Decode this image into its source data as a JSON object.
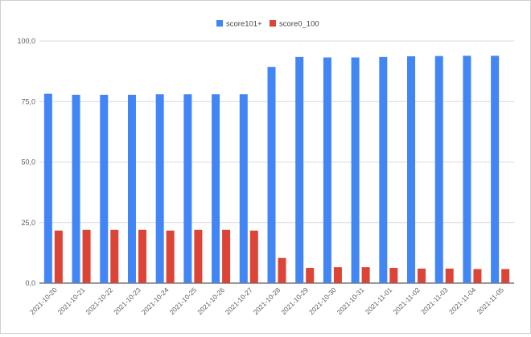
{
  "chart_data": {
    "type": "bar",
    "title": "",
    "xlabel": "",
    "ylabel": "",
    "ylim": [
      0,
      100
    ],
    "y_ticks": [
      "0,0",
      "25,0",
      "50,0",
      "75,0",
      "100,0"
    ],
    "y_tick_values": [
      0,
      25,
      50,
      75,
      100
    ],
    "grid": true,
    "legend_position": "top",
    "categories": [
      "2021-10-20",
      "2021-10-21",
      "2021-10-22",
      "2021-10-23",
      "2021-10-24",
      "2021-10-25",
      "2021-10-26",
      "2021-10-27",
      "2021-10-28",
      "2021-10-29",
      "2021-10-30",
      "2021-10-31",
      "2021-11-01",
      "2021-11-02",
      "2021-11-03",
      "2021-11-04",
      "2021-11-05"
    ],
    "series": [
      {
        "name": "score101+",
        "color": "#4285f4",
        "values": [
          78.2,
          77.8,
          77.8,
          77.8,
          78.0,
          78.0,
          78.0,
          78.0,
          89.3,
          93.4,
          93.2,
          93.2,
          93.4,
          93.7,
          93.8,
          93.9,
          93.9
        ]
      },
      {
        "name": "score0_100",
        "color": "#db4437",
        "values": [
          21.7,
          22.0,
          22.0,
          22.0,
          21.7,
          22.0,
          22.0,
          21.7,
          10.4,
          6.3,
          6.6,
          6.6,
          6.3,
          6.0,
          6.0,
          5.8,
          5.8
        ]
      }
    ]
  }
}
